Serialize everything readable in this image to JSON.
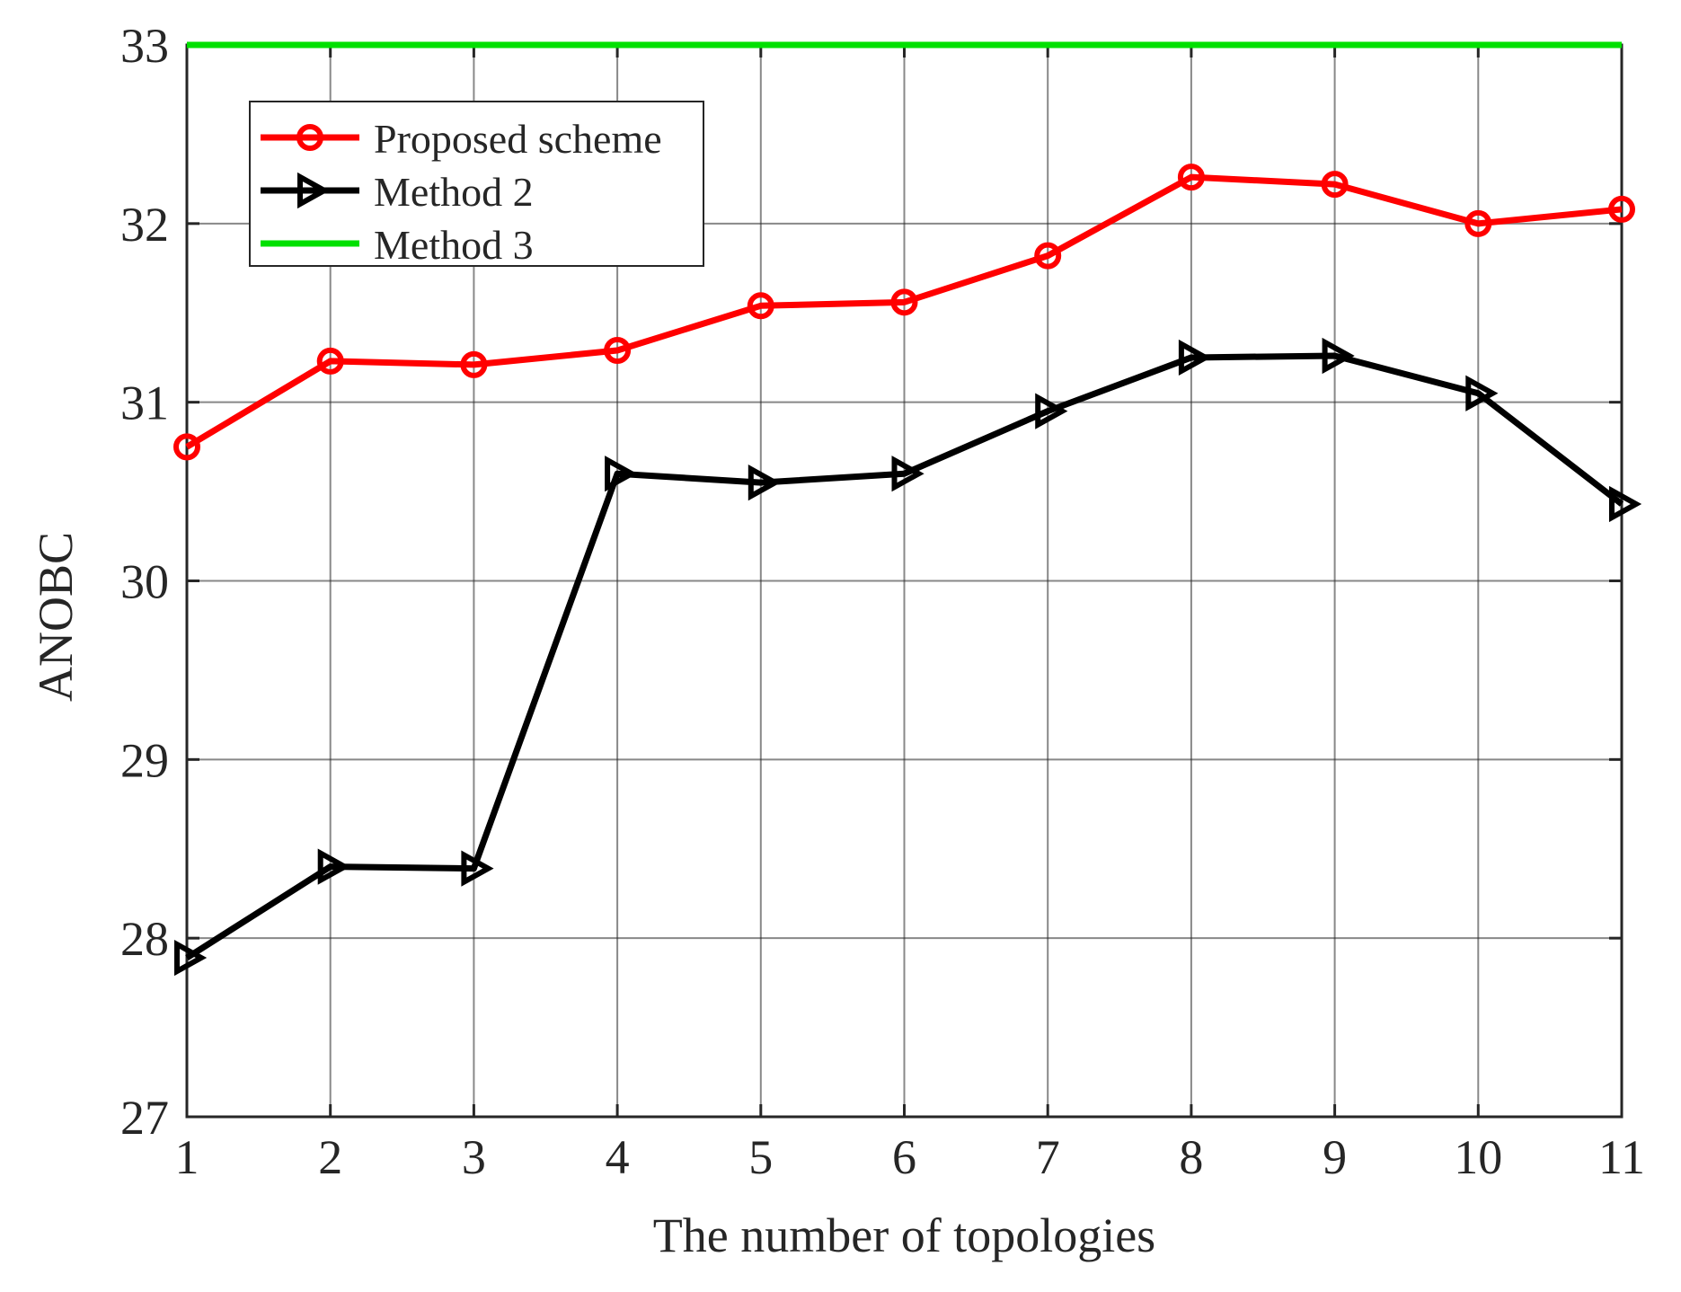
{
  "chart_data": {
    "type": "line",
    "title": "",
    "xlabel": "The number of topologies",
    "ylabel": "ANOBC",
    "x": [
      1,
      2,
      3,
      4,
      5,
      6,
      7,
      8,
      9,
      10,
      11
    ],
    "xlim": [
      1,
      11
    ],
    "ylim": [
      27,
      33
    ],
    "xticks": [
      1,
      2,
      3,
      4,
      5,
      6,
      7,
      8,
      9,
      10,
      11
    ],
    "yticks": [
      27,
      28,
      29,
      30,
      31,
      32,
      33
    ],
    "grid": true,
    "legend_position": "top-left",
    "series": [
      {
        "name": "Proposed scheme",
        "color": "#ff0000",
        "marker": "circle",
        "values": [
          30.75,
          31.23,
          31.21,
          31.29,
          31.54,
          31.56,
          31.82,
          32.26,
          32.22,
          32.0,
          32.08
        ]
      },
      {
        "name": "Method 2",
        "color": "#000000",
        "marker": "triangle-right",
        "values": [
          27.89,
          28.4,
          28.39,
          30.6,
          30.55,
          30.6,
          30.95,
          31.25,
          31.26,
          31.05,
          30.43
        ]
      },
      {
        "name": "Method 3",
        "color": "#00e000",
        "marker": "none",
        "values": [
          33,
          33,
          33,
          33,
          33,
          33,
          33,
          33,
          33,
          33,
          33
        ]
      }
    ]
  }
}
